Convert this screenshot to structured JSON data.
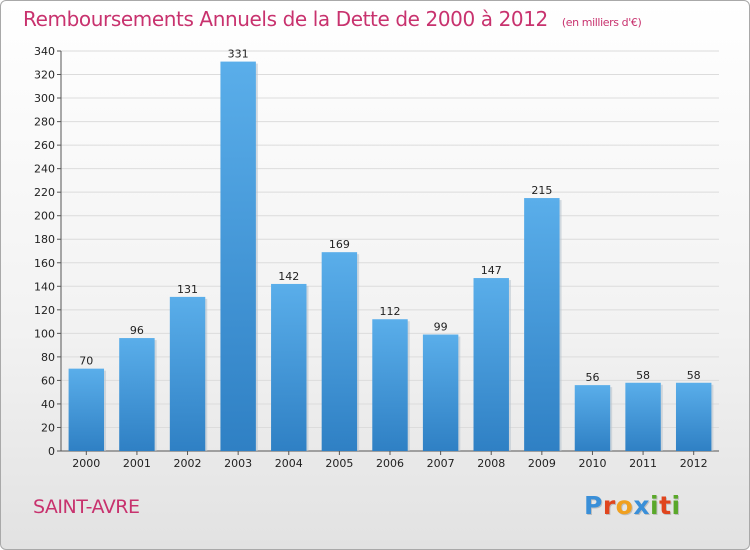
{
  "title": "Remboursements Annuels de la Dette de 2000 à 2012",
  "subtitle": "(en milliers d'€)",
  "commune": "SAINT-AVRE",
  "logo": {
    "text": "Proxiti",
    "letters": [
      {
        "ch": "P",
        "color": "#3a8fd8"
      },
      {
        "ch": "r",
        "color": "#e0451e"
      },
      {
        "ch": "o",
        "color": "#f0a020"
      },
      {
        "ch": "x",
        "color": "#3a8fd8"
      },
      {
        "ch": "i",
        "color": "#5aa82a"
      },
      {
        "ch": "t",
        "color": "#e0451e"
      },
      {
        "ch": "i",
        "color": "#5aa82a"
      }
    ]
  },
  "colors": {
    "bar_top": "#5aaeea",
    "bar_bottom": "#2f80c4",
    "accent": "#c8326e",
    "grid": "#dcdcdc"
  },
  "chart_data": {
    "type": "bar",
    "categories": [
      "2000",
      "2001",
      "2002",
      "2003",
      "2004",
      "2005",
      "2006",
      "2007",
      "2008",
      "2009",
      "2010",
      "2011",
      "2012"
    ],
    "values": [
      70,
      96,
      131,
      331,
      142,
      169,
      112,
      99,
      147,
      215,
      56,
      58,
      58
    ],
    "data_labels": [
      "70",
      "96",
      "131",
      "331",
      "142",
      "169",
      "112",
      "99",
      "147",
      "215",
      "56",
      "58",
      "58"
    ],
    "title": "Remboursements Annuels de la Dette de 2000 à 2012",
    "subtitle": "(en milliers d'€)",
    "xlabel": "",
    "ylabel": "",
    "ylim": [
      0,
      340
    ],
    "ytick_step": 20,
    "grid": true,
    "legend": "none"
  }
}
